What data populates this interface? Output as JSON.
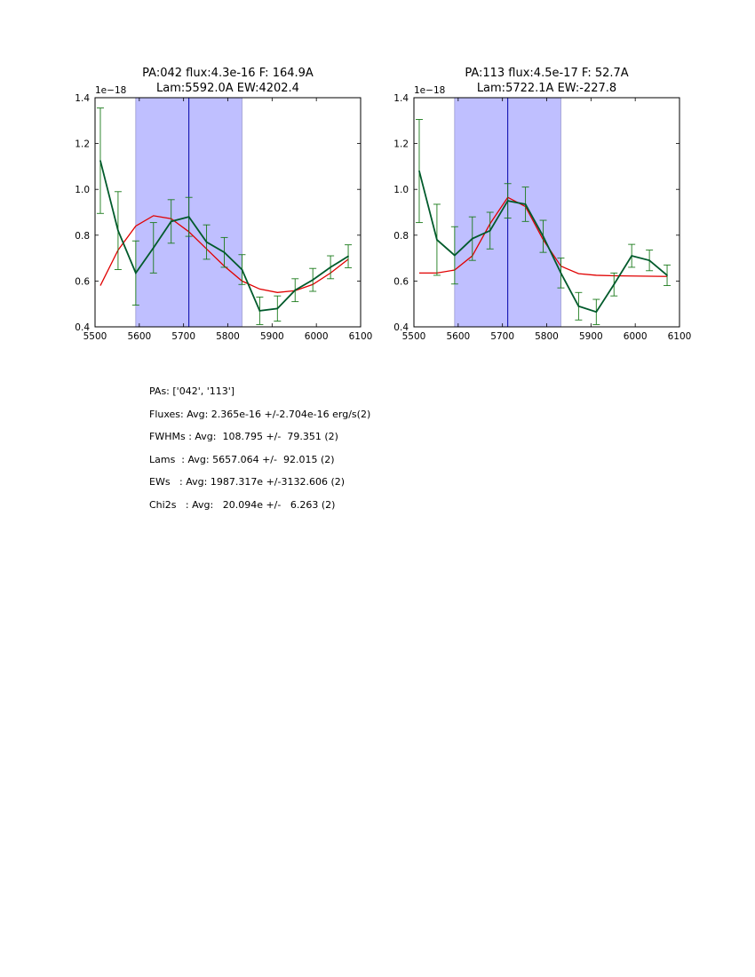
{
  "chart_data": [
    {
      "type": "line",
      "title_line1": "PA:042 flux:4.3e-16 F: 164.9A",
      "title_line2": "Lam:5592.0A EW:4202.4",
      "y_offset_label": "1e−18",
      "xlim": [
        5500,
        6100
      ],
      "ylim": [
        0.4,
        1.4
      ],
      "xticks": [
        "5500",
        "5600",
        "5700",
        "5800",
        "5900",
        "6000",
        "6100"
      ],
      "yticks": [
        "0.4",
        "0.6",
        "0.8",
        "1.0",
        "1.2",
        "1.4"
      ],
      "band": [
        5592,
        5832
      ],
      "center_line": 5712,
      "colors": {
        "band": "#bfbfff",
        "center": "#0000aa",
        "data": "#005a2b",
        "errorbar": "#1a7a1a",
        "fit": "#e00000"
      },
      "data_series": {
        "x": [
          5512,
          5552,
          5592,
          5632,
          5672,
          5712,
          5752,
          5792,
          5832,
          5872,
          5912,
          5952,
          5992,
          6032,
          6072
        ],
        "y": [
          1.125,
          0.82,
          0.635,
          0.745,
          0.86,
          0.88,
          0.77,
          0.725,
          0.65,
          0.47,
          0.48,
          0.56,
          0.605,
          0.66,
          0.708
        ],
        "err": [
          0.23,
          0.17,
          0.14,
          0.11,
          0.095,
          0.085,
          0.075,
          0.065,
          0.065,
          0.06,
          0.055,
          0.05,
          0.05,
          0.05,
          0.05
        ]
      },
      "fit_series": {
        "x": [
          5512,
          5552,
          5592,
          5632,
          5672,
          5712,
          5752,
          5792,
          5832,
          5872,
          5912,
          5952,
          5992,
          6032,
          6072
        ],
        "y": [
          0.58,
          0.735,
          0.84,
          0.885,
          0.872,
          0.815,
          0.74,
          0.665,
          0.6,
          0.565,
          0.55,
          0.558,
          0.585,
          0.635,
          0.695
        ]
      }
    },
    {
      "type": "line",
      "title_line1": "PA:113 flux:4.5e-17 F: 52.7A",
      "title_line2": "Lam:5722.1A EW:-227.8",
      "y_offset_label": "1e−18",
      "xlim": [
        5500,
        6100
      ],
      "ylim": [
        0.4,
        1.4
      ],
      "xticks": [
        "5500",
        "5600",
        "5700",
        "5800",
        "5900",
        "6000",
        "6100"
      ],
      "yticks": [
        "0.4",
        "0.6",
        "0.8",
        "1.0",
        "1.2",
        "1.4"
      ],
      "band": [
        5592,
        5832
      ],
      "center_line": 5712,
      "colors": {
        "band": "#bfbfff",
        "center": "#0000aa",
        "data": "#005a2b",
        "errorbar": "#1a7a1a",
        "fit": "#e00000"
      },
      "data_series": {
        "x": [
          5512,
          5552,
          5592,
          5632,
          5672,
          5712,
          5752,
          5792,
          5832,
          5872,
          5912,
          5952,
          5992,
          6032,
          6072
        ],
        "y": [
          1.08,
          0.78,
          0.712,
          0.785,
          0.82,
          0.95,
          0.935,
          0.795,
          0.635,
          0.49,
          0.465,
          0.585,
          0.71,
          0.69,
          0.625
        ],
        "err": [
          0.225,
          0.155,
          0.125,
          0.095,
          0.08,
          0.075,
          0.075,
          0.07,
          0.065,
          0.06,
          0.055,
          0.05,
          0.05,
          0.045,
          0.045
        ]
      },
      "fit_series": {
        "x": [
          5512,
          5552,
          5592,
          5632,
          5672,
          5712,
          5752,
          5792,
          5832,
          5872,
          5912,
          5952,
          5992,
          6032,
          6072
        ],
        "y": [
          0.635,
          0.635,
          0.648,
          0.71,
          0.85,
          0.965,
          0.925,
          0.78,
          0.665,
          0.632,
          0.625,
          0.623,
          0.622,
          0.621,
          0.62
        ]
      }
    }
  ],
  "stats": {
    "pas": "PAs: ['042', '113']",
    "fluxes": "Fluxes: Avg: 2.365e-16 +/-2.704e-16 erg/s(2)",
    "fwhms": "FWHMs : Avg:  108.795 +/-  79.351 (2)",
    "lams": "Lams  : Avg: 5657.064 +/-  92.015 (2)",
    "ews": "EWs   : Avg: 1987.317e +/-3132.606 (2)",
    "chi2s": "Chi2s   : Avg:   20.094e +/-   6.263 (2)"
  }
}
